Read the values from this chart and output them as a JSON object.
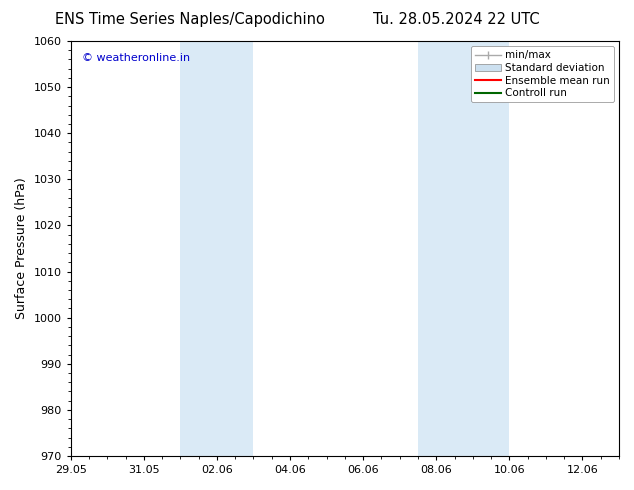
{
  "title_left": "ENS Time Series Naples/Capodichino",
  "title_right": "Tu. 28.05.2024 22 UTC",
  "ylabel": "Surface Pressure (hPa)",
  "ylim": [
    970,
    1060
  ],
  "yticks": [
    970,
    980,
    990,
    1000,
    1010,
    1020,
    1030,
    1040,
    1050,
    1060
  ],
  "xtick_labels": [
    "29.05",
    "31.05",
    "02.06",
    "04.06",
    "06.06",
    "08.06",
    "10.06",
    "12.06"
  ],
  "xtick_positions": [
    0,
    2,
    4,
    6,
    8,
    10,
    12,
    14
  ],
  "xlim": [
    0,
    15
  ],
  "shade_bands": [
    {
      "x_start": 3.0,
      "x_end": 5.0
    },
    {
      "x_start": 9.5,
      "x_end": 12.0
    }
  ],
  "shade_color": "#daeaf6",
  "watermark_text": "© weatheronline.in",
  "watermark_color": "#0000cc",
  "legend_entries": [
    {
      "label": "min/max",
      "type": "minmax",
      "color": "#aaaaaa"
    },
    {
      "label": "Standard deviation",
      "type": "patch",
      "color": "#cce0f0"
    },
    {
      "label": "Ensemble mean run",
      "type": "line",
      "color": "#ff0000"
    },
    {
      "label": "Controll run",
      "type": "line",
      "color": "#006600"
    }
  ],
  "background_color": "#ffffff",
  "title_fontsize": 10.5,
  "axis_label_fontsize": 9,
  "tick_fontsize": 8,
  "watermark_fontsize": 8
}
